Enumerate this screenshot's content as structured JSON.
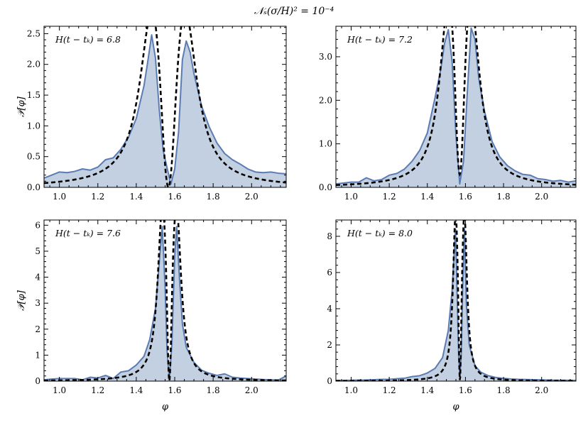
{
  "figure_title": "𝒩ₛ(σ/H)² = 10⁻⁴",
  "colors": {
    "fill": "#c3d0e1",
    "line": "#5b7cb2",
    "dashed": "#000000"
  },
  "chart_data": [
    {
      "type": "area",
      "annotation": "H(t − tₖ) = 6.8",
      "xlabel": "",
      "ylabel": "𝒫[φ]",
      "xlim": [
        0.92,
        2.18
      ],
      "ylim": [
        0,
        2.62
      ],
      "xticks": [
        1.0,
        1.2,
        1.4,
        1.6,
        1.8,
        2.0
      ],
      "yticks": [
        0.0,
        0.5,
        1.0,
        1.5,
        2.0,
        2.5
      ],
      "tick_decimals": 1,
      "peaks": [
        1.48,
        1.655
      ],
      "peak_height": 2.5,
      "gamma": 0.075,
      "dip_center": 1.567,
      "dip_width": 0.04,
      "dip_floor": 0.0,
      "series": [
        {
          "name": "",
          "style": "filled-solid",
          "x": [
            0.92,
            0.96,
            1.0,
            1.04,
            1.08,
            1.12,
            1.16,
            1.2,
            1.24,
            1.28,
            1.32,
            1.36,
            1.4,
            1.44,
            1.46,
            1.48,
            1.5,
            1.52,
            1.54,
            1.56,
            1.58,
            1.6,
            1.62,
            1.64,
            1.66,
            1.68,
            1.7,
            1.74,
            1.78,
            1.82,
            1.86,
            1.9,
            1.94,
            1.98,
            2.02,
            2.06,
            2.1,
            2.14,
            2.18
          ],
          "y": [
            0.15,
            0.2,
            0.25,
            0.24,
            0.26,
            0.3,
            0.28,
            0.33,
            0.45,
            0.48,
            0.62,
            0.82,
            1.12,
            1.65,
            2.05,
            2.48,
            2.1,
            1.25,
            0.6,
            0.32,
            0.05,
            0.3,
            0.9,
            2.08,
            2.38,
            2.2,
            1.85,
            1.32,
            0.98,
            0.72,
            0.55,
            0.45,
            0.38,
            0.3,
            0.25,
            0.24,
            0.25,
            0.23,
            0.22
          ]
        },
        {
          "name": "",
          "style": "dashed",
          "model": "fit"
        }
      ]
    },
    {
      "type": "area",
      "annotation": "H(t − tₖ) = 7.2",
      "xlabel": "",
      "ylabel": "",
      "xlim": [
        0.92,
        2.18
      ],
      "ylim": [
        0,
        3.7
      ],
      "xticks": [
        1.0,
        1.2,
        1.4,
        1.6,
        1.8,
        2.0
      ],
      "yticks": [
        0.0,
        1.0,
        2.0,
        3.0
      ],
      "tick_decimals": 1,
      "peaks": [
        1.51,
        1.63
      ],
      "peak_height": 3.65,
      "gamma": 0.055,
      "dip_center": 1.57,
      "dip_width": 0.026,
      "dip_floor": 0.3,
      "series": [
        {
          "name": "",
          "style": "filled-solid",
          "x": [
            0.92,
            0.96,
            1.0,
            1.04,
            1.08,
            1.12,
            1.16,
            1.2,
            1.24,
            1.28,
            1.32,
            1.36,
            1.4,
            1.44,
            1.47,
            1.49,
            1.51,
            1.53,
            1.55,
            1.57,
            1.59,
            1.61,
            1.63,
            1.65,
            1.67,
            1.7,
            1.74,
            1.78,
            1.82,
            1.86,
            1.9,
            1.94,
            1.98,
            2.02,
            2.06,
            2.1,
            2.14,
            2.18
          ],
          "y": [
            0.08,
            0.1,
            0.12,
            0.12,
            0.22,
            0.15,
            0.18,
            0.28,
            0.32,
            0.42,
            0.6,
            0.85,
            1.25,
            2.05,
            2.7,
            3.3,
            3.62,
            2.9,
            1.2,
            0.08,
            0.6,
            2.2,
            3.66,
            3.4,
            2.5,
            1.75,
            1.05,
            0.7,
            0.5,
            0.38,
            0.3,
            0.28,
            0.2,
            0.18,
            0.14,
            0.16,
            0.12,
            0.15
          ]
        },
        {
          "name": "",
          "style": "dashed",
          "model": "fit"
        }
      ]
    },
    {
      "type": "area",
      "annotation": "H(t − tₖ) = 7.6",
      "xlabel": "φ",
      "ylabel": "𝒫[φ]",
      "xlim": [
        0.92,
        2.18
      ],
      "ylim": [
        0,
        6.2
      ],
      "xticks": [
        1.0,
        1.2,
        1.4,
        1.6,
        1.8,
        2.0
      ],
      "yticks": [
        0,
        1,
        2,
        3,
        4,
        5,
        6
      ],
      "tick_decimals": 0,
      "peaks": [
        1.535,
        1.61
      ],
      "peak_height": 6.0,
      "gamma": 0.028,
      "dip_center": 1.572,
      "dip_width": 0.013,
      "dip_floor": 0.0,
      "series": [
        {
          "name": "",
          "style": "filled-solid",
          "x": [
            0.92,
            0.96,
            1.0,
            1.04,
            1.08,
            1.12,
            1.16,
            1.2,
            1.24,
            1.28,
            1.32,
            1.36,
            1.4,
            1.44,
            1.47,
            1.5,
            1.52,
            1.535,
            1.55,
            1.56,
            1.572,
            1.585,
            1.6,
            1.61,
            1.625,
            1.64,
            1.66,
            1.7,
            1.74,
            1.78,
            1.82,
            1.86,
            1.9,
            1.94,
            1.98,
            2.02,
            2.06,
            2.1,
            2.14,
            2.18
          ],
          "y": [
            0.05,
            0.08,
            0.1,
            0.1,
            0.1,
            0.05,
            0.15,
            0.12,
            0.22,
            0.1,
            0.35,
            0.4,
            0.62,
            0.95,
            1.6,
            2.8,
            4.6,
            5.95,
            3.6,
            1.2,
            0.05,
            1.4,
            4.8,
            5.95,
            3.9,
            2.2,
            1.3,
            0.72,
            0.42,
            0.3,
            0.22,
            0.28,
            0.15,
            0.12,
            0.1,
            0.08,
            0.06,
            0.05,
            0.04,
            0.2
          ]
        },
        {
          "name": "",
          "style": "dashed",
          "model": "fit"
        }
      ]
    },
    {
      "type": "area",
      "annotation": "H(t − tₖ) = 8.0",
      "xlabel": "φ",
      "ylabel": "",
      "xlim": [
        0.92,
        2.18
      ],
      "ylim": [
        0,
        8.9
      ],
      "xticks": [
        1.0,
        1.2,
        1.4,
        1.6,
        1.8,
        2.0
      ],
      "yticks": [
        0,
        2,
        4,
        6,
        8
      ],
      "tick_decimals": 0,
      "peaks": [
        1.548,
        1.595
      ],
      "peak_height": 8.4,
      "gamma": 0.016,
      "dip_center": 1.571,
      "dip_width": 0.008,
      "dip_floor": 0.0,
      "series": [
        {
          "name": "",
          "style": "filled-solid",
          "x": [
            0.92,
            0.96,
            1.0,
            1.04,
            1.08,
            1.12,
            1.16,
            1.2,
            1.24,
            1.28,
            1.32,
            1.36,
            1.4,
            1.44,
            1.48,
            1.51,
            1.53,
            1.548,
            1.558,
            1.565,
            1.571,
            1.578,
            1.585,
            1.595,
            1.605,
            1.62,
            1.65,
            1.68,
            1.72,
            1.76,
            1.8,
            1.84,
            1.88,
            1.92,
            1.96,
            2.0,
            2.04,
            2.08,
            2.12,
            2.18
          ],
          "y": [
            0.04,
            0.04,
            0.05,
            0.06,
            0.06,
            0.08,
            0.1,
            0.1,
            0.13,
            0.16,
            0.25,
            0.3,
            0.45,
            0.7,
            1.3,
            2.8,
            5.0,
            8.4,
            4.0,
            1.2,
            0.3,
            1.5,
            5.0,
            8.4,
            4.2,
            2.0,
            0.85,
            0.5,
            0.3,
            0.2,
            0.15,
            0.12,
            0.1,
            0.09,
            0.08,
            0.07,
            0.06,
            0.05,
            0.05,
            0.04
          ]
        },
        {
          "name": "",
          "style": "dashed",
          "model": "fit"
        }
      ]
    }
  ]
}
